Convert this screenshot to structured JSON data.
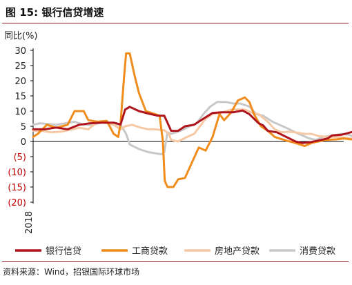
{
  "figure": {
    "title": "图 15: 银行信贷增速",
    "source": "资料来源：Wind，招银国际环球市场"
  },
  "chart_data": {
    "type": "line",
    "ylabel": "同比(%)",
    "ylim": [
      -20,
      30
    ],
    "yticks": [
      30,
      25,
      20,
      15,
      10,
      5,
      0,
      -5,
      -10,
      -15,
      -20
    ],
    "ytick_labels": [
      "30",
      "25",
      "20",
      "15",
      "10",
      "5",
      "0",
      "(5)",
      "(10)",
      "(15)",
      "(20)"
    ],
    "negative_tick_color": "#c00000",
    "x_label": "2018",
    "x_start": 2018.0,
    "x_end": 2024.75,
    "grid": false,
    "legend_position": "bottom",
    "series": [
      {
        "name": "银行信贷",
        "color": "#b0141d",
        "points": [
          [
            2018.0,
            4
          ],
          [
            2018.25,
            4
          ],
          [
            2018.5,
            4.6
          ],
          [
            2018.75,
            4
          ],
          [
            2019.0,
            5.5
          ],
          [
            2019.25,
            6
          ],
          [
            2019.5,
            6.2
          ],
          [
            2019.75,
            6.2
          ],
          [
            2019.9,
            5.6
          ],
          [
            2020.0,
            10.5
          ],
          [
            2020.1,
            11.4
          ],
          [
            2020.3,
            10
          ],
          [
            2020.5,
            9.2
          ],
          [
            2020.7,
            8.5
          ],
          [
            2020.85,
            8.5
          ],
          [
            2021.0,
            3.5
          ],
          [
            2021.15,
            3.5
          ],
          [
            2021.3,
            5
          ],
          [
            2021.5,
            5.5
          ],
          [
            2021.7,
            7.5
          ],
          [
            2021.9,
            9.4
          ],
          [
            2022.1,
            9.6
          ],
          [
            2022.35,
            9.6
          ],
          [
            2022.55,
            10.2
          ],
          [
            2022.7,
            9
          ],
          [
            2022.9,
            6
          ],
          [
            2023.0,
            5.3
          ],
          [
            2023.1,
            3.5
          ],
          [
            2023.3,
            3
          ],
          [
            2023.5,
            1.5
          ],
          [
            2023.7,
            0
          ],
          [
            2023.85,
            -0.5
          ],
          [
            2024.0,
            -0.3
          ],
          [
            2024.2,
            0.3
          ],
          [
            2024.4,
            1
          ],
          [
            2024.5,
            2
          ],
          [
            2024.7,
            2.2
          ],
          [
            2024.9,
            3
          ],
          [
            2025.1,
            3.8
          ],
          [
            2025.3,
            2.7
          ],
          [
            2025.45,
            3.5
          ],
          [
            2025.55,
            2.8
          ],
          [
            2025.62,
            4.8
          ]
        ]
      },
      {
        "name": "工商贷款",
        "color": "#f08c1c",
        "points": [
          [
            2018.0,
            1.5
          ],
          [
            2018.1,
            2.5
          ],
          [
            2018.3,
            5.5
          ],
          [
            2018.5,
            4.5
          ],
          [
            2018.75,
            5.5
          ],
          [
            2018.9,
            10
          ],
          [
            2019.1,
            10
          ],
          [
            2019.2,
            7
          ],
          [
            2019.4,
            6.5
          ],
          [
            2019.6,
            6.8
          ],
          [
            2019.75,
            2.5
          ],
          [
            2019.85,
            1.5
          ],
          [
            2019.9,
            6
          ],
          [
            2019.97,
            20
          ],
          [
            2020.02,
            29
          ],
          [
            2020.1,
            29
          ],
          [
            2020.2,
            22
          ],
          [
            2020.3,
            16
          ],
          [
            2020.45,
            10
          ],
          [
            2020.65,
            9
          ],
          [
            2020.75,
            8.5
          ],
          [
            2020.82,
            0
          ],
          [
            2020.86,
            -13
          ],
          [
            2020.92,
            -15
          ],
          [
            2021.05,
            -15
          ],
          [
            2021.15,
            -12.5
          ],
          [
            2021.3,
            -12
          ],
          [
            2021.45,
            -7
          ],
          [
            2021.6,
            -2
          ],
          [
            2021.75,
            -3
          ],
          [
            2021.9,
            1.5
          ],
          [
            2022.05,
            9
          ],
          [
            2022.15,
            7
          ],
          [
            2022.3,
            9.5
          ],
          [
            2022.45,
            13.5
          ],
          [
            2022.6,
            14.5
          ],
          [
            2022.7,
            13
          ],
          [
            2022.8,
            9
          ],
          [
            2022.95,
            5
          ],
          [
            2023.1,
            3.5
          ],
          [
            2023.25,
            1.5
          ],
          [
            2023.5,
            0.3
          ],
          [
            2023.7,
            -0.5
          ],
          [
            2023.9,
            -1.5
          ],
          [
            2024.05,
            -0.5
          ],
          [
            2024.2,
            0
          ],
          [
            2024.35,
            0.5
          ],
          [
            2024.6,
            0.7
          ],
          [
            2024.75,
            1
          ],
          [
            2024.9,
            0.7
          ],
          [
            2025.1,
            0.6
          ],
          [
            2025.3,
            0.6
          ],
          [
            2025.45,
            1
          ],
          [
            2025.62,
            0.5
          ]
        ]
      },
      {
        "name": "房地产贷款",
        "color": "#f6c9a4",
        "points": [
          [
            2018.0,
            3.5
          ],
          [
            2018.2,
            3.5
          ],
          [
            2018.4,
            3
          ],
          [
            2018.6,
            3.2
          ],
          [
            2018.8,
            3.8
          ],
          [
            2019.0,
            4.5
          ],
          [
            2019.2,
            4
          ],
          [
            2019.4,
            6.5
          ],
          [
            2019.6,
            6
          ],
          [
            2019.75,
            5.5
          ],
          [
            2019.9,
            4
          ],
          [
            2020.0,
            5
          ],
          [
            2020.15,
            5.5
          ],
          [
            2020.35,
            4.5
          ],
          [
            2020.5,
            4
          ],
          [
            2020.65,
            4
          ],
          [
            2020.85,
            3.7
          ],
          [
            2020.95,
            2.5
          ],
          [
            2021.0,
            0.5
          ],
          [
            2021.15,
            0
          ],
          [
            2021.35,
            1.5
          ],
          [
            2021.5,
            2.5
          ],
          [
            2021.75,
            7.5
          ],
          [
            2021.9,
            9
          ],
          [
            2022.1,
            9.5
          ],
          [
            2022.3,
            10.5
          ],
          [
            2022.5,
            10.5
          ],
          [
            2022.6,
            10.5
          ],
          [
            2022.75,
            9.5
          ],
          [
            2022.9,
            9
          ],
          [
            2023.1,
            6.5
          ],
          [
            2023.25,
            4
          ],
          [
            2023.4,
            3
          ],
          [
            2023.55,
            3.2
          ],
          [
            2023.7,
            3
          ],
          [
            2023.9,
            2.5
          ],
          [
            2024.05,
            2.5
          ],
          [
            2024.2,
            1.8
          ],
          [
            2024.4,
            1.5
          ],
          [
            2024.6,
            1.5
          ],
          [
            2024.8,
            1.2
          ],
          [
            2025.0,
            0.8
          ],
          [
            2025.2,
            0.8
          ],
          [
            2025.4,
            1.2
          ],
          [
            2025.5,
            0.8
          ],
          [
            2025.62,
            2.7
          ]
        ]
      },
      {
        "name": "消费贷款",
        "color": "#c8c8c8",
        "points": [
          [
            2018.0,
            5.5
          ],
          [
            2018.15,
            6
          ],
          [
            2018.3,
            5.8
          ],
          [
            2018.5,
            5.5
          ],
          [
            2018.7,
            6
          ],
          [
            2018.9,
            6.5
          ],
          [
            2019.1,
            5.5
          ],
          [
            2019.3,
            5.5
          ],
          [
            2019.5,
            6.3
          ],
          [
            2019.7,
            5.8
          ],
          [
            2019.9,
            5.5
          ],
          [
            2020.02,
            2.5
          ],
          [
            2020.1,
            -1
          ],
          [
            2020.3,
            -2.5
          ],
          [
            2020.5,
            -3.5
          ],
          [
            2020.7,
            -4
          ],
          [
            2020.8,
            -4.2
          ],
          [
            2020.85,
            -3.5
          ],
          [
            2020.92,
            3
          ],
          [
            2021.0,
            2.5
          ],
          [
            2021.2,
            3.5
          ],
          [
            2021.4,
            5
          ],
          [
            2021.55,
            6
          ],
          [
            2021.7,
            9
          ],
          [
            2021.85,
            11.5
          ],
          [
            2022.0,
            13
          ],
          [
            2022.2,
            13
          ],
          [
            2022.35,
            12.5
          ],
          [
            2022.5,
            12.5
          ],
          [
            2022.7,
            11.5
          ],
          [
            2022.85,
            9
          ],
          [
            2023.0,
            8.5
          ],
          [
            2023.2,
            6.5
          ],
          [
            2023.35,
            5.5
          ],
          [
            2023.5,
            4.5
          ],
          [
            2023.7,
            3
          ],
          [
            2023.85,
            2
          ],
          [
            2024.0,
            1
          ],
          [
            2024.15,
            0.5
          ],
          [
            2024.3,
            1.5
          ],
          [
            2024.5,
            2
          ],
          [
            2024.7,
            2.5
          ],
          [
            2024.85,
            2.2
          ],
          [
            2025.0,
            1.5
          ],
          [
            2025.2,
            1
          ],
          [
            2025.4,
            1
          ],
          [
            2025.62,
            0.8
          ]
        ]
      }
    ]
  }
}
